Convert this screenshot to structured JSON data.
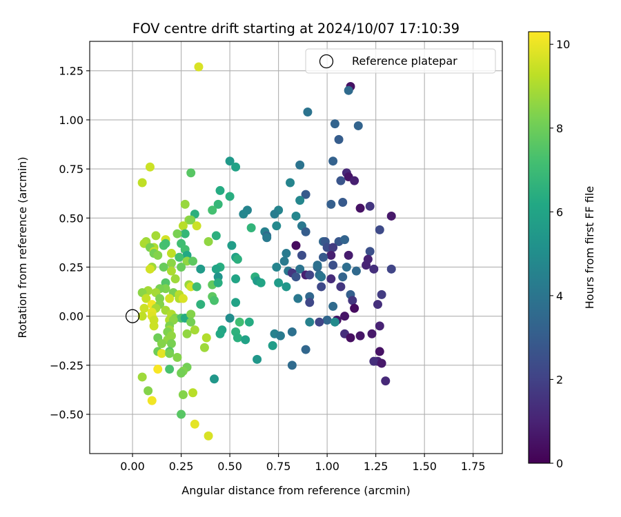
{
  "chart_data": {
    "type": "scatter",
    "title": "FOV centre drift starting at 2024/10/07 17:10:39",
    "xlabel": "Angular distance from reference (arcmin)",
    "ylabel": "Rotation from reference (arcmin)",
    "xlim": [
      -0.22,
      1.9
    ],
    "ylim": [
      -0.7,
      1.4
    ],
    "xticks": [
      0.0,
      0.25,
      0.5,
      0.75,
      1.0,
      1.25,
      1.5,
      1.75
    ],
    "xtick_labels": [
      "0.00",
      "0.25",
      "0.50",
      "0.75",
      "1.00",
      "1.25",
      "1.50",
      "1.75"
    ],
    "yticks": [
      -0.5,
      -0.25,
      0.0,
      0.25,
      0.5,
      0.75,
      1.0,
      1.25
    ],
    "ytick_labels": [
      "−0.50",
      "−0.25",
      "0.00",
      "0.25",
      "0.50",
      "0.75",
      "1.00",
      "1.25"
    ],
    "grid": true,
    "colormap": "viridis",
    "colorbar": {
      "label": "Hours from first FF file",
      "range": [
        0,
        10.3
      ],
      "ticks": [
        0,
        2,
        4,
        6,
        8,
        10
      ],
      "tick_labels": [
        "0",
        "2",
        "4",
        "6",
        "8",
        "10"
      ]
    },
    "legend": {
      "position": "top-right",
      "entries": [
        "Reference platepar"
      ]
    },
    "reference_point": {
      "x": 0.0,
      "y": 0.0
    },
    "points": [
      [
        0.34,
        1.27,
        9.7
      ],
      [
        1.12,
        1.17,
        0.5
      ],
      [
        1.11,
        1.15,
        3.6
      ],
      [
        0.9,
        1.04,
        3.9
      ],
      [
        1.04,
        0.98,
        3.3
      ],
      [
        1.16,
        0.97,
        3.3
      ],
      [
        1.06,
        0.9,
        3.0
      ],
      [
        0.5,
        0.79,
        5.5
      ],
      [
        0.53,
        0.76,
        5.9
      ],
      [
        0.09,
        0.76,
        9.5
      ],
      [
        0.3,
        0.73,
        7.6
      ],
      [
        1.1,
        0.73,
        1.2
      ],
      [
        0.05,
        0.68,
        9.3
      ],
      [
        1.03,
        0.79,
        3.2
      ],
      [
        0.86,
        0.77,
        3.9
      ],
      [
        1.11,
        0.71,
        0.6
      ],
      [
        1.07,
        0.69,
        2.7
      ],
      [
        1.14,
        0.69,
        0.9
      ],
      [
        0.81,
        0.68,
        4.6
      ],
      [
        0.45,
        0.64,
        6.3
      ],
      [
        0.5,
        0.61,
        6.4
      ],
      [
        0.89,
        0.62,
        2.9
      ],
      [
        0.27,
        0.57,
        8.7
      ],
      [
        0.44,
        0.57,
        6.8
      ],
      [
        1.02,
        0.57,
        3.1
      ],
      [
        1.22,
        0.56,
        1.6
      ],
      [
        0.86,
        0.59,
        4.7
      ],
      [
        1.08,
        0.58,
        2.9
      ],
      [
        1.17,
        0.55,
        0.5
      ],
      [
        0.41,
        0.54,
        7.2
      ],
      [
        0.59,
        0.54,
        4.6
      ],
      [
        0.75,
        0.54,
        4.6
      ],
      [
        0.32,
        0.52,
        6.5
      ],
      [
        0.57,
        0.52,
        4.7
      ],
      [
        0.73,
        0.52,
        4.3
      ],
      [
        0.84,
        0.51,
        4.7
      ],
      [
        1.33,
        0.51,
        0.7
      ],
      [
        0.29,
        0.49,
        8.6
      ],
      [
        0.3,
        0.49,
        8.4
      ],
      [
        0.26,
        0.46,
        9.2
      ],
      [
        0.33,
        0.46,
        9.5
      ],
      [
        0.61,
        0.45,
        6.7
      ],
      [
        0.74,
        0.46,
        4.8
      ],
      [
        0.87,
        0.46,
        4.1
      ],
      [
        0.89,
        0.43,
        3.0
      ],
      [
        1.27,
        0.44,
        2.3
      ],
      [
        0.27,
        0.42,
        6.8
      ],
      [
        0.23,
        0.42,
        8.2
      ],
      [
        0.68,
        0.43,
        4.5
      ],
      [
        0.69,
        0.41,
        3.6
      ],
      [
        0.12,
        0.41,
        8.9
      ],
      [
        0.43,
        0.41,
        6.5
      ],
      [
        0.17,
        0.39,
        9.6
      ],
      [
        0.07,
        0.38,
        8.8
      ],
      [
        0.39,
        0.38,
        8.6
      ],
      [
        0.25,
        0.37,
        7.1
      ],
      [
        0.69,
        0.4,
        4.2
      ],
      [
        0.98,
        0.38,
        3.4
      ],
      [
        0.99,
        0.38,
        2.8
      ],
      [
        1.06,
        0.38,
        2.8
      ],
      [
        1.09,
        0.39,
        3.3
      ],
      [
        0.06,
        0.37,
        9.0
      ],
      [
        0.16,
        0.36,
        7.3
      ],
      [
        0.17,
        0.37,
        7.2
      ],
      [
        0.51,
        0.36,
        5.7
      ],
      [
        0.84,
        0.36,
        0.3
      ],
      [
        1.0,
        0.35,
        2.4
      ],
      [
        1.03,
        0.35,
        1.8
      ],
      [
        1.22,
        0.33,
        2.5
      ],
      [
        0.11,
        0.35,
        9.0
      ],
      [
        0.09,
        0.35,
        8.2
      ],
      [
        0.27,
        0.34,
        7.2
      ],
      [
        0.11,
        0.33,
        9.4
      ],
      [
        0.11,
        0.32,
        8.1
      ],
      [
        0.13,
        0.31,
        8.4
      ],
      [
        0.28,
        0.31,
        6.2
      ],
      [
        0.2,
        0.32,
        9.3
      ],
      [
        0.79,
        0.32,
        4.2
      ],
      [
        0.87,
        0.31,
        2.4
      ],
      [
        1.02,
        0.31,
        0.9
      ],
      [
        0.98,
        0.3,
        2.9
      ],
      [
        1.11,
        0.31,
        0.8
      ],
      [
        0.53,
        0.3,
        5.9
      ],
      [
        0.54,
        0.29,
        6.5
      ],
      [
        0.24,
        0.3,
        7.2
      ],
      [
        0.28,
        0.28,
        8.6
      ],
      [
        0.31,
        0.28,
        7.7
      ],
      [
        0.78,
        0.28,
        4.2
      ],
      [
        1.21,
        0.29,
        1.0
      ],
      [
        0.2,
        0.27,
        8.5
      ],
      [
        0.16,
        0.25,
        7.9
      ],
      [
        0.25,
        0.25,
        7.9
      ],
      [
        0.35,
        0.24,
        5.6
      ],
      [
        0.45,
        0.25,
        6.4
      ],
      [
        0.74,
        0.25,
        4.6
      ],
      [
        0.86,
        0.24,
        3.9
      ],
      [
        0.95,
        0.25,
        3.4
      ],
      [
        0.95,
        0.26,
        3.8
      ],
      [
        1.03,
        0.26,
        2.5
      ],
      [
        1.1,
        0.25,
        3.7
      ],
      [
        1.15,
        0.23,
        3.5
      ],
      [
        1.2,
        0.26,
        1.0
      ],
      [
        1.24,
        0.24,
        1.4
      ],
      [
        1.33,
        0.24,
        2.1
      ],
      [
        0.1,
        0.25,
        8.8
      ],
      [
        0.09,
        0.24,
        9.6
      ],
      [
        0.43,
        0.24,
        6.0
      ],
      [
        0.2,
        0.23,
        9.0
      ],
      [
        0.8,
        0.23,
        4.1
      ],
      [
        0.82,
        0.22,
        1.6
      ],
      [
        0.84,
        0.2,
        2.7
      ],
      [
        0.89,
        0.21,
        0.9
      ],
      [
        0.91,
        0.21,
        2.1
      ],
      [
        0.96,
        0.21,
        3.7
      ],
      [
        0.97,
        0.2,
        4.0
      ],
      [
        1.02,
        0.19,
        1.3
      ],
      [
        1.08,
        0.2,
        3.3
      ],
      [
        0.22,
        0.19,
        8.8
      ],
      [
        0.44,
        0.2,
        5.3
      ],
      [
        0.53,
        0.19,
        6.0
      ],
      [
        0.63,
        0.2,
        6.5
      ],
      [
        0.64,
        0.18,
        5.6
      ],
      [
        0.75,
        0.17,
        5.6
      ],
      [
        0.29,
        0.16,
        8.7
      ],
      [
        0.3,
        0.15,
        9.6
      ],
      [
        0.41,
        0.16,
        7.8
      ],
      [
        0.44,
        0.17,
        6.4
      ],
      [
        0.66,
        0.17,
        6.0
      ],
      [
        0.79,
        0.15,
        5.4
      ],
      [
        0.97,
        0.15,
        2.2
      ],
      [
        1.07,
        0.15,
        1.6
      ],
      [
        0.17,
        0.17,
        7.5
      ],
      [
        0.17,
        0.14,
        8.3
      ],
      [
        0.14,
        0.14,
        8.2
      ],
      [
        0.08,
        0.13,
        8.9
      ],
      [
        0.05,
        0.12,
        8.5
      ],
      [
        0.21,
        0.12,
        8.2
      ],
      [
        0.24,
        0.11,
        9.2
      ],
      [
        0.12,
        0.12,
        8.9
      ],
      [
        0.33,
        0.15,
        7.1
      ],
      [
        1.12,
        0.11,
        3.1
      ],
      [
        1.28,
        0.11,
        1.8
      ],
      [
        0.41,
        0.1,
        7.7
      ],
      [
        0.42,
        0.08,
        7.3
      ],
      [
        0.24,
        0.09,
        9.1
      ],
      [
        0.26,
        0.09,
        9.7
      ],
      [
        0.14,
        0.09,
        8.3
      ],
      [
        0.19,
        0.09,
        9.6
      ],
      [
        0.07,
        0.09,
        9.4
      ],
      [
        0.85,
        0.09,
        4.1
      ],
      [
        0.91,
        0.1,
        3.4
      ],
      [
        1.13,
        0.08,
        1.6
      ],
      [
        0.1,
        0.06,
        10.1
      ],
      [
        0.14,
        0.06,
        8.4
      ],
      [
        0.35,
        0.06,
        6.6
      ],
      [
        0.53,
        0.07,
        5.9
      ],
      [
        0.91,
        0.07,
        2.2
      ],
      [
        1.14,
        0.04,
        0.3
      ],
      [
        1.26,
        0.06,
        1.4
      ],
      [
        1.03,
        0.05,
        3.6
      ],
      [
        0.06,
        0.04,
        9.5
      ],
      [
        0.12,
        0.04,
        8.9
      ],
      [
        0.17,
        0.03,
        8.9
      ],
      [
        0.1,
        0.02,
        9.9
      ],
      [
        0.05,
        0.0,
        9.3
      ],
      [
        0.2,
        0.01,
        9.1
      ],
      [
        0.1,
        0.0,
        9.8
      ],
      [
        0.22,
        -0.01,
        8.4
      ],
      [
        0.25,
        -0.01,
        7.4
      ],
      [
        0.27,
        -0.01,
        6.3
      ],
      [
        0.3,
        0.01,
        8.4
      ],
      [
        0.5,
        -0.01,
        5.0
      ],
      [
        1.0,
        -0.02,
        3.4
      ],
      [
        1.05,
        -0.02,
        0.6
      ],
      [
        1.09,
        0.0,
        0.6
      ],
      [
        0.19,
        -0.02,
        9.1
      ],
      [
        0.11,
        -0.02,
        9.5
      ],
      [
        0.3,
        -0.03,
        8.1
      ],
      [
        0.21,
        -0.02,
        8.5
      ],
      [
        0.55,
        -0.03,
        7.1
      ],
      [
        0.6,
        -0.03,
        6.3
      ],
      [
        0.91,
        -0.03,
        4.5
      ],
      [
        0.96,
        -0.03,
        2.1
      ],
      [
        1.04,
        -0.03,
        4.9
      ],
      [
        1.27,
        -0.05,
        1.0
      ],
      [
        0.11,
        -0.05,
        9.5
      ],
      [
        0.19,
        -0.05,
        8.3
      ],
      [
        0.19,
        -0.07,
        8.8
      ],
      [
        0.32,
        -0.07,
        8.9
      ],
      [
        0.46,
        -0.07,
        6.0
      ],
      [
        0.53,
        -0.08,
        6.6
      ],
      [
        0.82,
        -0.08,
        3.8
      ],
      [
        0.18,
        -0.08,
        8.3
      ],
      [
        0.28,
        -0.09,
        8.6
      ],
      [
        0.45,
        -0.09,
        6.2
      ],
      [
        0.73,
        -0.09,
        4.5
      ],
      [
        0.76,
        -0.1,
        4.2
      ],
      [
        1.09,
        -0.09,
        1.4
      ],
      [
        1.12,
        -0.11,
        0.4
      ],
      [
        0.13,
        -0.11,
        8.0
      ],
      [
        0.54,
        -0.11,
        6.5
      ],
      [
        0.58,
        -0.12,
        5.9
      ],
      [
        0.18,
        -0.12,
        8.6
      ],
      [
        0.2,
        -0.1,
        8.6
      ],
      [
        0.38,
        -0.11,
        9.1
      ],
      [
        1.17,
        -0.1,
        0.6
      ],
      [
        1.23,
        -0.09,
        0.7
      ],
      [
        0.15,
        -0.14,
        8.4
      ],
      [
        0.2,
        -0.14,
        8.2
      ],
      [
        0.37,
        -0.16,
        8.8
      ],
      [
        0.72,
        -0.15,
        5.7
      ],
      [
        0.89,
        -0.17,
        3.4
      ],
      [
        0.13,
        -0.18,
        8.0
      ],
      [
        0.19,
        -0.18,
        7.6
      ],
      [
        0.15,
        -0.19,
        9.9
      ],
      [
        0.19,
        -0.19,
        8.2
      ],
      [
        1.27,
        -0.18,
        0.5
      ],
      [
        0.23,
        -0.21,
        8.4
      ],
      [
        0.64,
        -0.22,
        5.4
      ],
      [
        1.26,
        -0.23,
        1.0
      ],
      [
        1.24,
        -0.23,
        1.4
      ],
      [
        1.28,
        -0.24,
        0.7
      ],
      [
        0.82,
        -0.25,
        3.6
      ],
      [
        0.13,
        -0.27,
        10.2
      ],
      [
        0.19,
        -0.27,
        7.3
      ],
      [
        0.28,
        -0.26,
        8.1
      ],
      [
        0.26,
        -0.28,
        8.3
      ],
      [
        0.25,
        -0.29,
        8.1
      ],
      [
        0.05,
        -0.31,
        8.8
      ],
      [
        0.42,
        -0.32,
        5.4
      ],
      [
        1.3,
        -0.33,
        1.2
      ],
      [
        0.08,
        -0.38,
        8.4
      ],
      [
        0.31,
        -0.39,
        9.2
      ],
      [
        0.26,
        -0.4,
        8.4
      ],
      [
        0.1,
        -0.43,
        10.1
      ],
      [
        0.25,
        -0.5,
        7.6
      ],
      [
        0.32,
        -0.55,
        9.9
      ],
      [
        0.39,
        -0.61,
        9.7
      ]
    ]
  }
}
